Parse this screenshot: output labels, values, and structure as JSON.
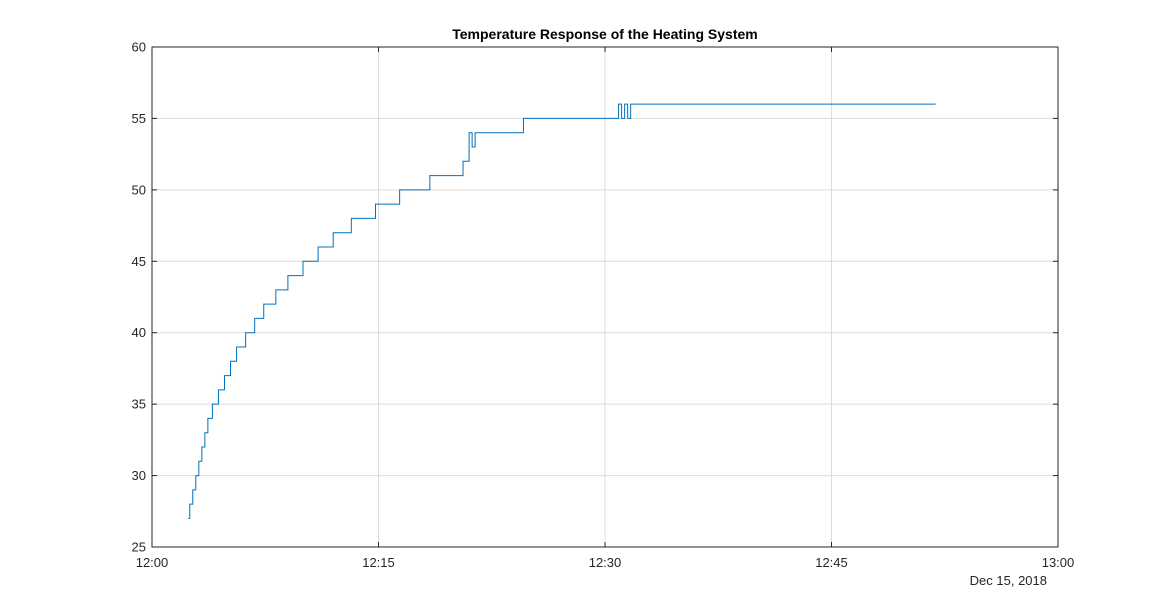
{
  "chart_data": {
    "type": "line",
    "title": "Temperature Response of the Heating System",
    "xlabel": "",
    "ylabel": "",
    "date_label": "Dec 15, 2018",
    "x_unit": "time (HH:MM)",
    "xlim": [
      "12:00",
      "13:00"
    ],
    "x_ticks": [
      "12:00",
      "12:15",
      "12:30",
      "12:45",
      "13:00"
    ],
    "ylim": [
      25,
      60
    ],
    "y_ticks": [
      "25",
      "30",
      "35",
      "40",
      "45",
      "50",
      "55",
      "60"
    ],
    "grid": true,
    "color": "#0072bd",
    "series": [
      {
        "x": [
          "12:02:24",
          "12:02:30",
          "12:02:42",
          "12:02:54",
          "12:03:06",
          "12:03:18",
          "12:03:30",
          "12:03:42",
          "12:04:00",
          "12:04:24",
          "12:04:48",
          "12:05:12",
          "12:05:36",
          "12:06:12",
          "12:06:48",
          "12:07:24",
          "12:08:12",
          "12:09:00",
          "12:10:00",
          "12:11:00",
          "12:12:00",
          "12:13:12",
          "12:14:48",
          "12:16:24",
          "12:18:24",
          "12:20:36",
          "12:21:00",
          "12:21:12",
          "12:21:24",
          "12:24:36",
          "12:30:54",
          "12:31:06",
          "12:31:18",
          "12:31:30",
          "12:31:42",
          "12:51:54"
        ],
        "y": [
          27,
          28,
          29,
          30,
          31,
          32,
          33,
          34,
          35,
          36,
          37,
          38,
          39,
          40,
          41,
          42,
          43,
          44,
          45,
          46,
          47,
          48,
          49,
          50,
          51,
          52,
          54,
          53,
          54,
          55,
          56,
          55,
          56,
          55,
          56,
          56
        ]
      }
    ]
  }
}
